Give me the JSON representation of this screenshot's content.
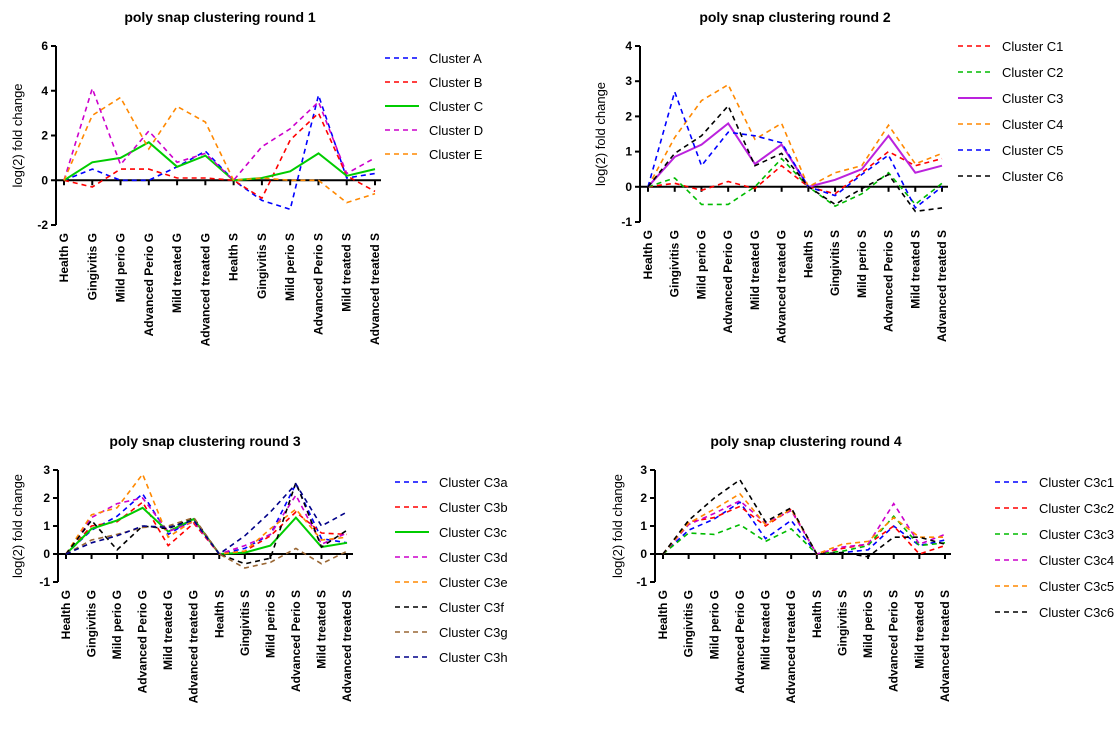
{
  "chart_data": [
    {
      "type": "line",
      "title": "poly snap clustering round 1",
      "ylabel": "log(2) fold change",
      "xlabel": "",
      "ylim": [
        -2,
        6
      ],
      "yticks": [
        "-2",
        "0",
        "2",
        "4",
        "6"
      ],
      "categories": [
        "Health G",
        "Gingivitis G",
        "Mild perio G",
        "Advanced Perio G",
        "Mild treated G",
        "Advanced treated G",
        "Health S",
        "Gingivitis S",
        "Mild perio S",
        "Advanced Perio S",
        "Mild treated S",
        "Advanced treated S"
      ],
      "legend_position": "right",
      "series": [
        {
          "name": "Cluster A",
          "color": "#0000ff",
          "dashed": true,
          "values": [
            0,
            0.5,
            0,
            0,
            0.6,
            1.3,
            0,
            -0.9,
            -1.3,
            3.8,
            0.1,
            0.3
          ]
        },
        {
          "name": "Cluster B",
          "color": "#ff0000",
          "dashed": true,
          "values": [
            0,
            -0.3,
            0.5,
            0.5,
            0.1,
            0.1,
            0,
            -0.8,
            1.8,
            3.0,
            0.2,
            -0.5
          ]
        },
        {
          "name": "Cluster C",
          "color": "#00cc00",
          "dashed": false,
          "values": [
            0,
            0.8,
            1.0,
            1.7,
            0.6,
            1.1,
            0,
            0.1,
            0.4,
            1.2,
            0.2,
            0.5
          ]
        },
        {
          "name": "Cluster D",
          "color": "#cc00cc",
          "dashed": true,
          "values": [
            0,
            4.1,
            0.7,
            2.2,
            0.8,
            1.2,
            0,
            1.5,
            2.3,
            3.5,
            0.3,
            1.0
          ]
        },
        {
          "name": "Cluster E",
          "color": "#ff8800",
          "dashed": true,
          "values": [
            0,
            2.9,
            3.7,
            1.4,
            3.3,
            2.6,
            0,
            0.1,
            0,
            0,
            -1.0,
            -0.6
          ]
        }
      ]
    },
    {
      "type": "line",
      "title": "poly snap clustering round 2",
      "ylabel": "log(2) fold change",
      "xlabel": "",
      "ylim": [
        -1,
        4
      ],
      "yticks": [
        "-1",
        "0",
        "1",
        "2",
        "3",
        "4"
      ],
      "categories": [
        "Health G",
        "Gingivitis G",
        "Mild perio G",
        "Advanced Perio G",
        "Mild treated G",
        "Advanced treated G",
        "Health S",
        "Gingivitis S",
        "Mild perio S",
        "Advanced Perio S",
        "Mild treated S",
        "Advanced treated S"
      ],
      "legend_position": "right",
      "series": [
        {
          "name": "Cluster C1",
          "color": "#ff0000",
          "dashed": true,
          "values": [
            0,
            0.1,
            -0.1,
            0.15,
            -0.05,
            0.6,
            0,
            -0.2,
            0.4,
            1.0,
            0.6,
            0.8
          ]
        },
        {
          "name": "Cluster C2",
          "color": "#00bb00",
          "dashed": true,
          "values": [
            0,
            0.25,
            -0.5,
            -0.5,
            0,
            0.8,
            0,
            -0.55,
            -0.2,
            0.4,
            -0.5,
            0.1
          ]
        },
        {
          "name": "Cluster C3",
          "color": "#bb22dd",
          "dashed": false,
          "values": [
            0,
            0.85,
            1.2,
            1.8,
            0.65,
            1.2,
            0,
            0.2,
            0.5,
            1.45,
            0.4,
            0.6
          ]
        },
        {
          "name": "Cluster C4",
          "color": "#ff8800",
          "dashed": true,
          "values": [
            0,
            1.4,
            2.45,
            2.9,
            1.35,
            1.8,
            0,
            0.4,
            0.6,
            1.75,
            0.65,
            0.95
          ]
        },
        {
          "name": "Cluster C5",
          "color": "#0000ff",
          "dashed": true,
          "values": [
            0,
            2.7,
            0.6,
            1.55,
            1.45,
            1.25,
            0,
            -0.25,
            0.35,
            0.9,
            -0.6,
            0
          ]
        },
        {
          "name": "Cluster C6",
          "color": "#000000",
          "dashed": true,
          "values": [
            0,
            0.95,
            1.45,
            2.3,
            0.6,
            0.95,
            0,
            -0.5,
            -0.05,
            0.35,
            -0.7,
            -0.6
          ]
        }
      ]
    },
    {
      "type": "line",
      "title": "poly snap clustering round 3",
      "ylabel": "log(2) fold change",
      "xlabel": "",
      "ylim": [
        -1,
        3
      ],
      "yticks": [
        "-1",
        "0",
        "1",
        "2",
        "3"
      ],
      "categories": [
        "Health G",
        "Gingivitis G",
        "Mild perio G",
        "Advanced Perio G",
        "Mild treated G",
        "Advanced treated G",
        "Health S",
        "Gingivitis S",
        "Mild perio S",
        "Advanced Perio S",
        "Mild treated S",
        "Advanced treated S"
      ],
      "legend_position": "right",
      "series": [
        {
          "name": "Cluster C3a",
          "color": "#0000ff",
          "dashed": true,
          "values": [
            0,
            0.85,
            1.35,
            2.15,
            0.7,
            1.25,
            0,
            0.2,
            0.7,
            2.5,
            0.55,
            0.4
          ]
        },
        {
          "name": "Cluster C3b",
          "color": "#ff0000",
          "dashed": true,
          "values": [
            0,
            1.0,
            1.15,
            1.85,
            0.3,
            1.1,
            0,
            0.1,
            0.65,
            1.5,
            0.75,
            0.7
          ]
        },
        {
          "name": "Cluster C3c",
          "color": "#00cc00",
          "dashed": false,
          "values": [
            0,
            0.9,
            1.2,
            1.65,
            0.8,
            1.25,
            0,
            0.05,
            0.3,
            1.3,
            0.25,
            0.4
          ]
        },
        {
          "name": "Cluster C3d",
          "color": "#cc00cc",
          "dashed": true,
          "values": [
            0,
            1.3,
            1.8,
            2.0,
            0.8,
            1.15,
            0,
            0.3,
            0.7,
            2.1,
            0.35,
            0.75
          ]
        },
        {
          "name": "Cluster C3e",
          "color": "#ff8800",
          "dashed": true,
          "values": [
            0,
            1.4,
            1.65,
            2.85,
            0.6,
            1.2,
            0,
            0.1,
            0.9,
            1.6,
            0.5,
            0.6
          ]
        },
        {
          "name": "Cluster C3f",
          "color": "#000000",
          "dashed": true,
          "values": [
            0,
            1.2,
            0.15,
            1.0,
            0.9,
            1.3,
            0,
            -0.35,
            -0.15,
            2.55,
            0.25,
            0.85
          ]
        },
        {
          "name": "Cluster C3g",
          "color": "#996633",
          "dashed": true,
          "values": [
            0,
            0.5,
            0.7,
            0.95,
            1.0,
            1.3,
            0,
            -0.5,
            -0.3,
            0.2,
            -0.35,
            0.1
          ]
        },
        {
          "name": "Cluster C3h",
          "color": "#000088",
          "dashed": true,
          "values": [
            0,
            0.4,
            0.65,
            1.0,
            0.95,
            1.2,
            0,
            0.65,
            1.5,
            2.5,
            1.0,
            1.5
          ]
        }
      ]
    },
    {
      "type": "line",
      "title": "poly snap clustering round 4",
      "ylabel": "log(2) fold change",
      "xlabel": "",
      "ylim": [
        -1,
        3
      ],
      "yticks": [
        "-1",
        "0",
        "1",
        "2",
        "3"
      ],
      "categories": [
        "Health G",
        "Gingivitis G",
        "Mild perio G",
        "Advanced Perio G",
        "Mild treated G",
        "Advanced treated G",
        "Health S",
        "Gingivitis S",
        "Mild perio S",
        "Advanced Perio S",
        "Mild treated S",
        "Advanced treated S"
      ],
      "legend_position": "right",
      "series": [
        {
          "name": "Cluster C3c1",
          "color": "#0000ff",
          "dashed": true,
          "values": [
            0,
            0.85,
            1.25,
            1.85,
            0.55,
            1.2,
            0,
            0.05,
            0.15,
            1.0,
            0.3,
            0.5
          ]
        },
        {
          "name": "Cluster C3c2",
          "color": "#ff0000",
          "dashed": true,
          "values": [
            0,
            1.15,
            1.3,
            1.7,
            1.0,
            1.6,
            0,
            0.2,
            0.35,
            1.0,
            0,
            0.3
          ]
        },
        {
          "name": "Cluster C3c3",
          "color": "#00bb00",
          "dashed": true,
          "values": [
            0,
            0.75,
            0.7,
            1.05,
            0.45,
            0.9,
            0,
            0.1,
            0.3,
            1.35,
            0.3,
            0.4
          ]
        },
        {
          "name": "Cluster C3c4",
          "color": "#cc00cc",
          "dashed": true,
          "values": [
            0,
            1.05,
            1.45,
            1.9,
            1.1,
            1.55,
            0,
            0.25,
            0.35,
            1.8,
            0.35,
            0.7
          ]
        },
        {
          "name": "Cluster C3c5",
          "color": "#ff8800",
          "dashed": true,
          "values": [
            0,
            1.1,
            1.6,
            2.15,
            1.05,
            1.6,
            0,
            0.35,
            0.45,
            1.3,
            0.6,
            0.6
          ]
        },
        {
          "name": "Cluster C3c6",
          "color": "#000000",
          "dashed": true,
          "values": [
            0,
            1.2,
            2.0,
            2.65,
            1.15,
            1.65,
            0,
            0.05,
            -0.1,
            0.6,
            0.6,
            0.35
          ]
        }
      ]
    }
  ]
}
